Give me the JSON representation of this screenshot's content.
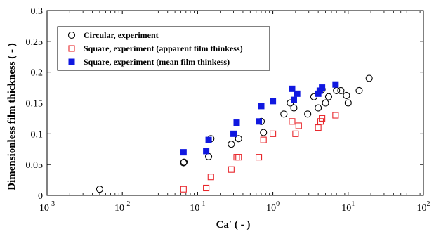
{
  "chart_data": {
    "type": "scatter",
    "xlabel": "Ca′ ( - )",
    "ylabel": "Dimensionless film thickness ( - )",
    "xscale": "log",
    "xlim": [
      0.001,
      100
    ],
    "ylim": [
      0,
      0.3
    ],
    "x_ticks": [
      {
        "value": 0.001,
        "base": "10",
        "exp": "-3"
      },
      {
        "value": 0.01,
        "base": "10",
        "exp": "-2"
      },
      {
        "value": 0.1,
        "base": "10",
        "exp": "-1"
      },
      {
        "value": 1,
        "base": "10",
        "exp": "0"
      },
      {
        "value": 10,
        "base": "10",
        "exp": "1"
      },
      {
        "value": 100,
        "base": "10",
        "exp": "2"
      }
    ],
    "y_ticks": [
      {
        "value": 0,
        "label": "0"
      },
      {
        "value": 0.05,
        "label": "0.05"
      },
      {
        "value": 0.1,
        "label": "0.1"
      },
      {
        "value": 0.15,
        "label": "0.15"
      },
      {
        "value": 0.2,
        "label": "0.2"
      },
      {
        "value": 0.25,
        "label": "0.25"
      },
      {
        "value": 0.3,
        "label": "0.3"
      }
    ],
    "legend_position": "top-left",
    "series": [
      {
        "name": "Circular, experiment",
        "marker": "circle-open",
        "color": "#000000",
        "points": [
          [
            0.005,
            0.01
          ],
          [
            0.065,
            0.053
          ],
          [
            0.066,
            0.054
          ],
          [
            0.14,
            0.063
          ],
          [
            0.15,
            0.092
          ],
          [
            0.28,
            0.083
          ],
          [
            0.35,
            0.092
          ],
          [
            0.7,
            0.12
          ],
          [
            0.75,
            0.102
          ],
          [
            1.4,
            0.132
          ],
          [
            1.7,
            0.15
          ],
          [
            1.9,
            0.142
          ],
          [
            2.9,
            0.132
          ],
          [
            3.5,
            0.16
          ],
          [
            4.0,
            0.142
          ],
          [
            4.5,
            0.172
          ],
          [
            5.0,
            0.15
          ],
          [
            5.5,
            0.16
          ],
          [
            7.0,
            0.17
          ],
          [
            8.0,
            0.17
          ],
          [
            9.5,
            0.162
          ],
          [
            10.0,
            0.15
          ],
          [
            14.0,
            0.17
          ],
          [
            19.0,
            0.19
          ]
        ]
      },
      {
        "name": "Square, experiment (apparent film thinkess)",
        "marker": "square-open",
        "color": "#e8262b",
        "points": [
          [
            0.065,
            0.01
          ],
          [
            0.13,
            0.012
          ],
          [
            0.15,
            0.03
          ],
          [
            0.28,
            0.042
          ],
          [
            0.33,
            0.062
          ],
          [
            0.35,
            0.062
          ],
          [
            0.65,
            0.062
          ],
          [
            0.75,
            0.09
          ],
          [
            1.0,
            0.1
          ],
          [
            1.8,
            0.12
          ],
          [
            2.0,
            0.1
          ],
          [
            2.2,
            0.113
          ],
          [
            4.0,
            0.11
          ],
          [
            4.3,
            0.12
          ],
          [
            4.5,
            0.125
          ],
          [
            6.8,
            0.13
          ]
        ]
      },
      {
        "name": "Square, experiment (mean film thinkess)",
        "marker": "square-filled",
        "color": "#1018e0",
        "points": [
          [
            0.065,
            0.07
          ],
          [
            0.13,
            0.072
          ],
          [
            0.14,
            0.09
          ],
          [
            0.3,
            0.1
          ],
          [
            0.33,
            0.118
          ],
          [
            0.65,
            0.12
          ],
          [
            0.7,
            0.145
          ],
          [
            1.0,
            0.153
          ],
          [
            1.8,
            0.173
          ],
          [
            1.9,
            0.155
          ],
          [
            2.1,
            0.165
          ],
          [
            4.0,
            0.165
          ],
          [
            4.2,
            0.17
          ],
          [
            4.5,
            0.175
          ],
          [
            6.8,
            0.18
          ]
        ]
      }
    ]
  }
}
